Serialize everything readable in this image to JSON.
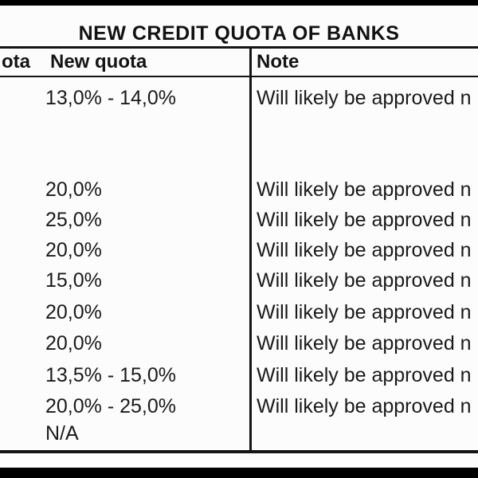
{
  "page": {
    "title": "NEW CREDIT QUOTA OF BANKS"
  },
  "table": {
    "headers": {
      "old_quota_partial": "ota",
      "new_quota": "New quota",
      "note": "Note"
    },
    "rows": [
      {
        "new_quota": "13,0% - 14,0%",
        "note": "Will likely be approved n"
      },
      {
        "new_quota": "20,0%",
        "note": "Will likely be approved n"
      },
      {
        "new_quota": "25,0%",
        "note": "Will likely be approved n"
      },
      {
        "new_quota": "20,0%",
        "note": "Will likely be approved n"
      },
      {
        "new_quota": "15,0%",
        "note": "Will likely be approved n"
      },
      {
        "new_quota": "20,0%",
        "note": "Will likely be approved n"
      },
      {
        "new_quota": "20,0%",
        "note": "Will likely be approved n"
      },
      {
        "new_quota": "13,5% - 15,0%",
        "note": "Will likely be approved n"
      },
      {
        "new_quota": "20,0% - 25,0%",
        "note": "Will likely be approved n"
      },
      {
        "new_quota": "N/A",
        "note": ""
      }
    ]
  },
  "colors": {
    "background": "#fcfcfc",
    "text": "#1a1a1a",
    "border": "#141414",
    "letterbox_bar": "#000000"
  }
}
